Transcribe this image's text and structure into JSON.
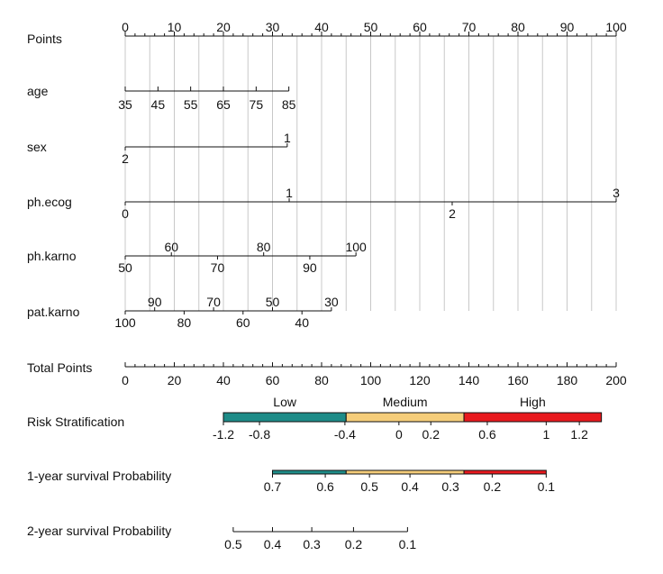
{
  "chart_data": {
    "type": "nomogram",
    "colors": {
      "low": "#1e8c88",
      "medium": "#f5cd7a",
      "high": "#e8191e",
      "grid": "#c8c8c8",
      "axis": "#111111"
    },
    "rows": [
      {
        "key": "points",
        "label": "Points",
        "ticks": [
          {
            "points": 0,
            "label": "0"
          },
          {
            "points": 10,
            "label": "10"
          },
          {
            "points": 20,
            "label": "20"
          },
          {
            "points": 30,
            "label": "30"
          },
          {
            "points": 40,
            "label": "40"
          },
          {
            "points": 50,
            "label": "50"
          },
          {
            "points": 60,
            "label": "60"
          },
          {
            "points": 70,
            "label": "70"
          },
          {
            "points": 80,
            "label": "80"
          },
          {
            "points": 90,
            "label": "90"
          },
          {
            "points": 100,
            "label": "100"
          }
        ]
      },
      {
        "key": "age",
        "label": "age",
        "ticks": [
          {
            "points": 0,
            "label": "35"
          },
          {
            "points": 6.67,
            "label": "45"
          },
          {
            "points": 13.33,
            "label": "55"
          },
          {
            "points": 20,
            "label": "65"
          },
          {
            "points": 26.67,
            "label": "75"
          },
          {
            "points": 33.33,
            "label": "85"
          }
        ]
      },
      {
        "key": "sex",
        "label": "sex",
        "ticks": [
          {
            "points": 33,
            "label": "1"
          },
          {
            "points": 0,
            "label": "2"
          }
        ]
      },
      {
        "key": "ph_ecog",
        "label": "ph.ecog",
        "ticks": [
          {
            "points": 0,
            "label": "0"
          },
          {
            "points": 33.4,
            "label": "1"
          },
          {
            "points": 66.6,
            "label": "2"
          },
          {
            "points": 100,
            "label": "3"
          }
        ]
      },
      {
        "key": "ph_karno",
        "label": "ph.karno",
        "ticks": [
          {
            "points": 0,
            "label": "50"
          },
          {
            "points": 9.4,
            "label": "60"
          },
          {
            "points": 18.8,
            "label": "70"
          },
          {
            "points": 28.2,
            "label": "80"
          },
          {
            "points": 37.6,
            "label": "90"
          },
          {
            "points": 47,
            "label": "100"
          }
        ]
      },
      {
        "key": "pat_karno",
        "label": "pat.karno",
        "ticks": [
          {
            "points": 0,
            "label": "100"
          },
          {
            "points": 6,
            "label": "90"
          },
          {
            "points": 12,
            "label": "80"
          },
          {
            "points": 18,
            "label": "70"
          },
          {
            "points": 24,
            "label": "60"
          },
          {
            "points": 30,
            "label": "50"
          },
          {
            "points": 36,
            "label": "40"
          },
          {
            "points": 42,
            "label": "30"
          }
        ]
      },
      {
        "key": "total_points",
        "label": "Total Points",
        "ticks": [
          {
            "total": 0,
            "label": "0"
          },
          {
            "total": 20,
            "label": "20"
          },
          {
            "total": 40,
            "label": "40"
          },
          {
            "total": 60,
            "label": "60"
          },
          {
            "total": 80,
            "label": "80"
          },
          {
            "total": 100,
            "label": "100"
          },
          {
            "total": 120,
            "label": "120"
          },
          {
            "total": 140,
            "label": "140"
          },
          {
            "total": 160,
            "label": "160"
          },
          {
            "total": 180,
            "label": "180"
          },
          {
            "total": 200,
            "label": "200"
          }
        ]
      },
      {
        "key": "risk",
        "label": "Risk Stratification",
        "bands": [
          {
            "name": "Low",
            "from_total": 40,
            "to_total": 90,
            "color": "low"
          },
          {
            "name": "Medium",
            "from_total": 90,
            "to_total": 138,
            "color": "medium"
          },
          {
            "name": "High",
            "from_total": 138,
            "to_total": 194,
            "color": "high"
          }
        ],
        "ticks": [
          {
            "total": 40,
            "label": "-1.2"
          },
          {
            "total": 54.7,
            "label": "-0.8"
          },
          {
            "total": 89.5,
            "label": "-0.4"
          },
          {
            "total": 111.5,
            "label": "0"
          },
          {
            "total": 124.5,
            "label": "0.2"
          },
          {
            "total": 147.5,
            "label": "0.6"
          },
          {
            "total": 171.5,
            "label": "1"
          },
          {
            "total": 185,
            "label": "1.2"
          }
        ]
      },
      {
        "key": "surv1",
        "label": "1-year survival Probability",
        "bands": [
          {
            "from_total": 60,
            "to_total": 90,
            "color": "low"
          },
          {
            "from_total": 90,
            "to_total": 138,
            "color": "medium"
          },
          {
            "from_total": 138,
            "to_total": 171.5,
            "color": "high"
          }
        ],
        "ticks": [
          {
            "total": 60,
            "label": "0.7"
          },
          {
            "total": 81.5,
            "label": "0.6"
          },
          {
            "total": 99.5,
            "label": "0.5"
          },
          {
            "total": 116,
            "label": "0.4"
          },
          {
            "total": 132.5,
            "label": "0.3"
          },
          {
            "total": 149.5,
            "label": "0.2"
          },
          {
            "total": 171.5,
            "label": "0.1"
          }
        ]
      },
      {
        "key": "surv2",
        "label": "2-year survival Probability",
        "ticks": [
          {
            "total": 44,
            "label": "0.5"
          },
          {
            "total": 60,
            "label": "0.4"
          },
          {
            "total": 76,
            "label": "0.3"
          },
          {
            "total": 93,
            "label": "0.2"
          },
          {
            "total": 115,
            "label": "0.1"
          }
        ]
      }
    ]
  }
}
